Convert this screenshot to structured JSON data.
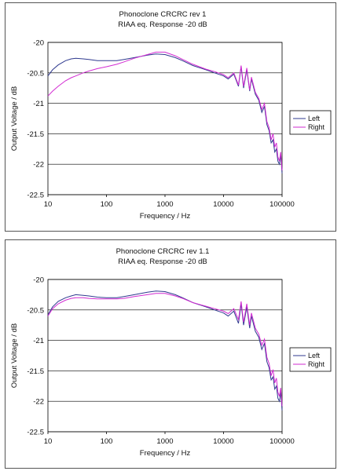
{
  "chart_data": [
    {
      "type": "line",
      "title": "Phonoclone CRCRC rev 1",
      "subtitle": "RIAA eq. Response -20 dB",
      "xlabel": "Frequency / Hz",
      "ylabel": "Output Voltage / dB",
      "xscale": "log",
      "xlim": [
        10,
        100000
      ],
      "ylim": [
        -22.5,
        -20
      ],
      "xticks": [
        "10",
        "100",
        "1000",
        "10000",
        "100000"
      ],
      "yticks": [
        "-20",
        "-20.5",
        "-21",
        "-21.5",
        "-22",
        "-22.5"
      ],
      "grid": "horizontal",
      "legend_position": "right",
      "series": [
        {
          "name": "Left",
          "color": "#2f3a8f",
          "x": [
            10,
            12,
            15,
            20,
            25,
            30,
            40,
            50,
            70,
            100,
            150,
            200,
            300,
            500,
            700,
            1000,
            1500,
            2000,
            3000,
            5000,
            7000,
            10000,
            12000,
            15000,
            18000,
            20000,
            22000,
            25000,
            28000,
            30000,
            35000,
            40000,
            45000,
            50000,
            55000,
            60000,
            65000,
            70000,
            75000,
            80000,
            85000,
            90000,
            95000,
            100000
          ],
          "y": [
            -20.55,
            -20.45,
            -20.37,
            -20.3,
            -20.27,
            -20.26,
            -20.27,
            -20.28,
            -20.3,
            -20.3,
            -20.3,
            -20.28,
            -20.25,
            -20.21,
            -20.19,
            -20.2,
            -20.25,
            -20.3,
            -20.38,
            -20.45,
            -20.5,
            -20.55,
            -20.6,
            -20.52,
            -20.72,
            -20.4,
            -20.75,
            -20.45,
            -20.8,
            -20.6,
            -20.85,
            -20.95,
            -21.15,
            -21.05,
            -21.35,
            -21.45,
            -21.65,
            -21.6,
            -21.8,
            -21.75,
            -21.95,
            -22.0,
            -21.85,
            -22.15
          ]
        },
        {
          "name": "Right",
          "color": "#d22bd2",
          "x": [
            10,
            12,
            15,
            20,
            25,
            30,
            40,
            50,
            70,
            100,
            150,
            200,
            300,
            500,
            700,
            1000,
            1500,
            2000,
            3000,
            5000,
            7000,
            10000,
            12000,
            15000,
            18000,
            20000,
            22000,
            25000,
            28000,
            30000,
            35000,
            40000,
            45000,
            50000,
            55000,
            60000,
            65000,
            70000,
            75000,
            80000,
            85000,
            90000,
            95000,
            100000
          ],
          "y": [
            -20.88,
            -20.8,
            -20.72,
            -20.63,
            -20.58,
            -20.55,
            -20.5,
            -20.47,
            -20.43,
            -20.4,
            -20.36,
            -20.32,
            -20.26,
            -20.2,
            -20.16,
            -20.16,
            -20.22,
            -20.28,
            -20.36,
            -20.44,
            -20.48,
            -20.53,
            -20.58,
            -20.5,
            -20.7,
            -20.38,
            -20.72,
            -20.42,
            -20.78,
            -20.57,
            -20.82,
            -20.92,
            -21.1,
            -21.0,
            -21.3,
            -21.4,
            -21.6,
            -21.5,
            -21.72,
            -21.65,
            -21.88,
            -21.95,
            -21.8,
            -22.1
          ]
        }
      ]
    },
    {
      "type": "line",
      "title": "Phonoclone CRCRC rev 1.1",
      "subtitle": "RIAA eq. Response -20 dB",
      "xlabel": "Frequency / Hz",
      "ylabel": "Output Voltage / dB",
      "xscale": "log",
      "xlim": [
        10,
        100000
      ],
      "ylim": [
        -22.5,
        -20
      ],
      "xticks": [
        "10",
        "100",
        "1000",
        "10000",
        "100000"
      ],
      "yticks": [
        "-20",
        "-20.5",
        "-21",
        "-21.5",
        "-22",
        "-22.5"
      ],
      "grid": "horizontal",
      "legend_position": "right",
      "series": [
        {
          "name": "Left",
          "color": "#2f3a8f",
          "x": [
            10,
            12,
            15,
            20,
            25,
            30,
            40,
            50,
            70,
            100,
            150,
            200,
            300,
            500,
            700,
            1000,
            1500,
            2000,
            3000,
            5000,
            7000,
            10000,
            12000,
            15000,
            18000,
            20000,
            22000,
            25000,
            28000,
            30000,
            35000,
            40000,
            45000,
            50000,
            55000,
            60000,
            65000,
            70000,
            75000,
            80000,
            85000,
            90000,
            95000,
            100000
          ],
          "y": [
            -20.58,
            -20.45,
            -20.36,
            -20.3,
            -20.27,
            -20.25,
            -20.26,
            -20.27,
            -20.29,
            -20.3,
            -20.3,
            -20.28,
            -20.25,
            -20.21,
            -20.19,
            -20.2,
            -20.25,
            -20.3,
            -20.38,
            -20.45,
            -20.5,
            -20.55,
            -20.6,
            -20.52,
            -20.72,
            -20.4,
            -20.75,
            -20.45,
            -20.8,
            -20.6,
            -20.85,
            -20.95,
            -21.15,
            -21.05,
            -21.35,
            -21.45,
            -21.65,
            -21.6,
            -21.8,
            -21.75,
            -21.95,
            -22.0,
            -21.85,
            -22.15
          ]
        },
        {
          "name": "Right",
          "color": "#d22bd2",
          "x": [
            10,
            12,
            15,
            20,
            25,
            30,
            40,
            50,
            70,
            100,
            150,
            200,
            300,
            500,
            700,
            1000,
            1500,
            2000,
            3000,
            5000,
            7000,
            10000,
            12000,
            15000,
            18000,
            20000,
            22000,
            25000,
            28000,
            30000,
            35000,
            40000,
            45000,
            50000,
            55000,
            60000,
            65000,
            70000,
            75000,
            80000,
            85000,
            90000,
            95000,
            100000
          ],
          "y": [
            -20.6,
            -20.48,
            -20.4,
            -20.34,
            -20.31,
            -20.3,
            -20.3,
            -20.31,
            -20.32,
            -20.32,
            -20.32,
            -20.31,
            -20.28,
            -20.25,
            -20.23,
            -20.23,
            -20.27,
            -20.31,
            -20.38,
            -20.44,
            -20.48,
            -20.52,
            -20.56,
            -20.48,
            -20.66,
            -20.36,
            -20.7,
            -20.4,
            -20.75,
            -20.55,
            -20.8,
            -20.9,
            -21.08,
            -20.98,
            -21.28,
            -21.38,
            -21.58,
            -21.48,
            -21.7,
            -21.62,
            -21.85,
            -21.92,
            -21.78,
            -22.08
          ]
        }
      ]
    }
  ]
}
